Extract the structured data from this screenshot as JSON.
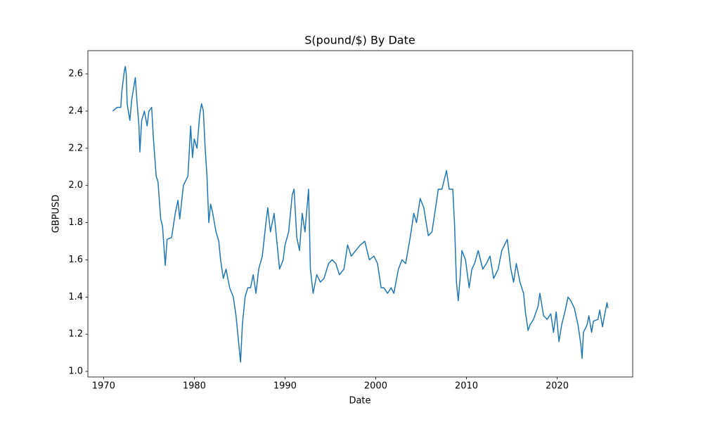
{
  "chart_data": {
    "type": "line",
    "title": "S(pound/$) By Date",
    "x_label": "Date",
    "y_label": "GBPUSD",
    "xlim": [
      1968.27,
      2028.33
    ],
    "ylim": [
      0.97,
      2.725
    ],
    "xticks": [
      1970,
      1980,
      1990,
      2000,
      2010,
      2020
    ],
    "yticks": [
      {
        "value": 1.0,
        "label": "1.0"
      },
      1.2,
      1.4,
      1.6,
      1.8,
      {
        "value": 2.0,
        "label": "2.0"
      },
      2.2,
      2.4,
      2.6
    ],
    "grid": false,
    "series": [
      {
        "name": "GBPUSD",
        "color": "#1f77b4",
        "x": [
          1971.0,
          1971.5,
          1971.9,
          1972.0,
          1972.3,
          1972.4,
          1972.5,
          1972.6,
          1972.9,
          1973.1,
          1973.3,
          1973.5,
          1973.7,
          1973.9,
          1974.0,
          1974.2,
          1974.5,
          1974.8,
          1975.0,
          1975.3,
          1975.5,
          1975.8,
          1976.0,
          1976.3,
          1976.5,
          1976.8,
          1977.0,
          1977.5,
          1977.9,
          1978.2,
          1978.4,
          1978.8,
          1979.0,
          1979.3,
          1979.6,
          1979.8,
          1980.0,
          1980.3,
          1980.6,
          1980.8,
          1981.0,
          1981.2,
          1981.4,
          1981.6,
          1981.8,
          1982.0,
          1982.4,
          1982.7,
          1982.9,
          1983.2,
          1983.5,
          1983.9,
          1984.3,
          1984.6,
          1984.9,
          1985.1,
          1985.3,
          1985.6,
          1985.9,
          1986.2,
          1986.5,
          1986.8,
          1987.1,
          1987.5,
          1987.9,
          1988.1,
          1988.4,
          1988.8,
          1989.0,
          1989.4,
          1989.8,
          1990.0,
          1990.4,
          1990.8,
          1991.0,
          1991.3,
          1991.6,
          1991.9,
          1992.2,
          1992.6,
          1992.8,
          1993.1,
          1993.5,
          1993.9,
          1994.3,
          1994.8,
          1995.2,
          1995.6,
          1996.0,
          1996.5,
          1996.9,
          1997.3,
          1997.8,
          1998.3,
          1998.8,
          1999.3,
          1999.8,
          2000.2,
          2000.6,
          2000.9,
          2001.3,
          2001.7,
          2002.0,
          2002.5,
          2002.9,
          2003.3,
          2003.8,
          2004.2,
          2004.5,
          2004.9,
          2005.3,
          2005.8,
          2006.2,
          2006.6,
          2006.9,
          2007.3,
          2007.8,
          2008.1,
          2008.5,
          2008.7,
          2008.9,
          2009.1,
          2009.3,
          2009.5,
          2009.9,
          2010.3,
          2010.6,
          2010.9,
          2011.3,
          2011.8,
          2012.2,
          2012.6,
          2013.0,
          2013.5,
          2013.9,
          2014.5,
          2014.9,
          2015.2,
          2015.5,
          2015.9,
          2016.3,
          2016.5,
          2016.8,
          2017.0,
          2017.4,
          2017.9,
          2018.1,
          2018.5,
          2018.9,
          2019.3,
          2019.6,
          2019.9,
          2020.2,
          2020.5,
          2020.9,
          2021.2,
          2021.5,
          2021.9,
          2022.3,
          2022.6,
          2022.75,
          2022.9,
          2023.3,
          2023.5,
          2023.8,
          2024.0,
          2024.5,
          2024.7,
          2025.0,
          2025.3,
          2025.5,
          2025.6
        ],
        "values": [
          2.4,
          2.42,
          2.42,
          2.5,
          2.62,
          2.64,
          2.6,
          2.44,
          2.35,
          2.46,
          2.52,
          2.58,
          2.44,
          2.32,
          2.18,
          2.35,
          2.4,
          2.32,
          2.4,
          2.42,
          2.25,
          2.05,
          2.02,
          1.82,
          1.78,
          1.57,
          1.71,
          1.72,
          1.85,
          1.92,
          1.82,
          2.0,
          2.02,
          2.05,
          2.32,
          2.15,
          2.25,
          2.2,
          2.38,
          2.44,
          2.4,
          2.2,
          2.05,
          1.8,
          1.9,
          1.86,
          1.75,
          1.7,
          1.6,
          1.5,
          1.55,
          1.45,
          1.4,
          1.3,
          1.15,
          1.05,
          1.25,
          1.4,
          1.45,
          1.45,
          1.52,
          1.42,
          1.55,
          1.62,
          1.8,
          1.88,
          1.75,
          1.85,
          1.75,
          1.55,
          1.6,
          1.68,
          1.75,
          1.95,
          1.98,
          1.72,
          1.65,
          1.85,
          1.75,
          1.98,
          1.55,
          1.42,
          1.52,
          1.48,
          1.5,
          1.58,
          1.6,
          1.58,
          1.52,
          1.55,
          1.68,
          1.62,
          1.65,
          1.68,
          1.7,
          1.6,
          1.62,
          1.58,
          1.45,
          1.45,
          1.42,
          1.45,
          1.42,
          1.55,
          1.6,
          1.58,
          1.72,
          1.85,
          1.8,
          1.93,
          1.88,
          1.73,
          1.75,
          1.88,
          1.98,
          1.98,
          2.08,
          1.98,
          1.98,
          1.78,
          1.48,
          1.38,
          1.5,
          1.65,
          1.6,
          1.45,
          1.55,
          1.58,
          1.65,
          1.55,
          1.58,
          1.62,
          1.5,
          1.55,
          1.65,
          1.71,
          1.55,
          1.48,
          1.58,
          1.48,
          1.42,
          1.32,
          1.22,
          1.25,
          1.28,
          1.35,
          1.42,
          1.3,
          1.28,
          1.31,
          1.21,
          1.32,
          1.16,
          1.25,
          1.33,
          1.4,
          1.38,
          1.34,
          1.25,
          1.15,
          1.07,
          1.21,
          1.25,
          1.3,
          1.21,
          1.27,
          1.28,
          1.33,
          1.24,
          1.32,
          1.37,
          1.34
        ]
      }
    ]
  }
}
